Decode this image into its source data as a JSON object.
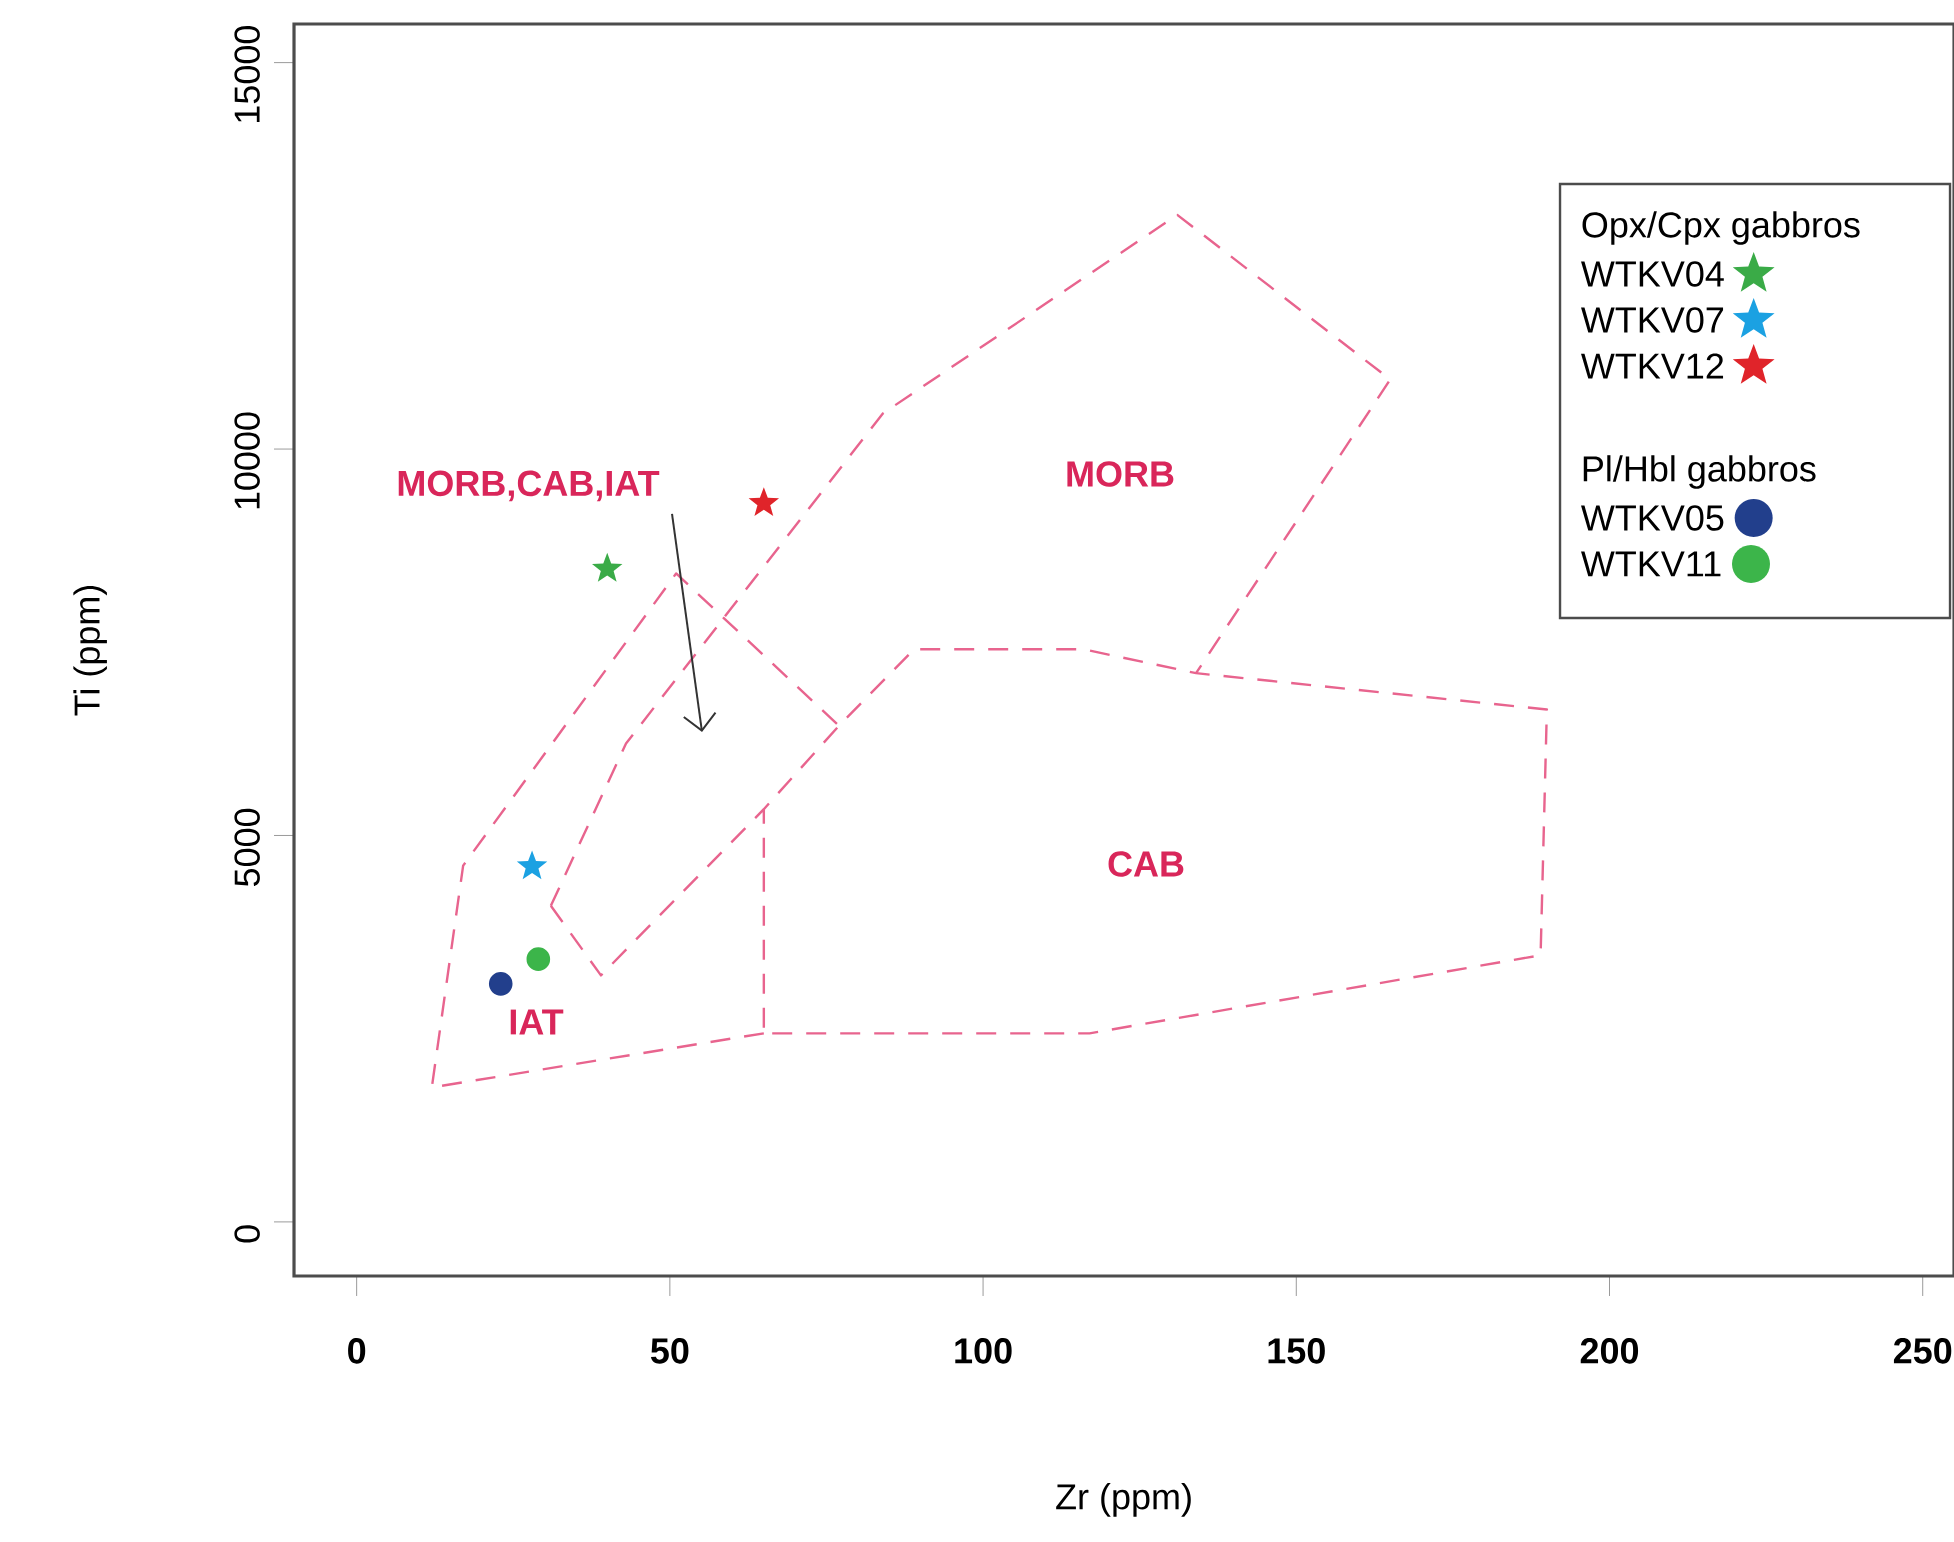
{
  "chart_data": {
    "type": "scatter",
    "xlabel": "Zr (ppm)",
    "ylabel": "Ti (ppm)",
    "xlim": [
      -10,
      255
    ],
    "ylim": [
      -700,
      15500
    ],
    "xticks": [
      0,
      50,
      100,
      150,
      200,
      250
    ],
    "yticks": [
      0,
      5000,
      10000,
      15000
    ],
    "grid": false,
    "legend": "top right",
    "legend_title": "Opx/Cpx gabbros",
    "series": [
      {
        "name": "WTKV04",
        "color": "#3aab47",
        "marker": "star",
        "x": [
          40
        ],
        "values": [
          8450
        ]
      },
      {
        "name": "WTKV07",
        "color": "#1ba1e2",
        "marker": "star",
        "x": [
          28
        ],
        "values": [
          4600
        ]
      },
      {
        "name": "WTKV12",
        "color": "#e0242a",
        "marker": "star",
        "x": [
          65
        ],
        "values": [
          9300
        ]
      },
      {
        "name": "WTKV05",
        "color": "#223f8c",
        "marker": "circle",
        "x": [
          23
        ],
        "values": [
          3080
        ]
      },
      {
        "name": "WTKV11",
        "color": "#3cb54a",
        "marker": "circle",
        "x": [
          29
        ],
        "values": [
          3400
        ]
      },
      {
        "type": "line",
        "color": "#e8648e",
        "line_style": "dashed",
        "marker": "none",
        "x": [
          65,
          12,
          17,
          51,
          77
        ],
        "values": [
          2440,
          1740,
          4610,
          8390,
          6420
        ]
      },
      {
        "type": "line",
        "color": "#e8648e",
        "line_style": "dashed",
        "marker": "none",
        "x": [
          31,
          43,
          84,
          131,
          165,
          134
        ],
        "values": [
          4090,
          6190,
          10460,
          13030,
          10900,
          7100
        ]
      },
      {
        "type": "line",
        "color": "#e8648e",
        "line_style": "dashed",
        "marker": "none",
        "x": [
          31,
          39,
          65,
          77,
          89,
          116,
          134,
          190,
          189,
          117,
          65,
          65
        ],
        "values": [
          4090,
          3190,
          5340,
          6420,
          7410,
          7410,
          7100,
          6630,
          3450,
          2440,
          2440,
          5340
        ]
      }
    ],
    "annotations": [
      "Pl/Hbl gabbros",
      "MORB",
      "CAB",
      "IAT",
      "MORB,CAB,IAT"
    ]
  }
}
